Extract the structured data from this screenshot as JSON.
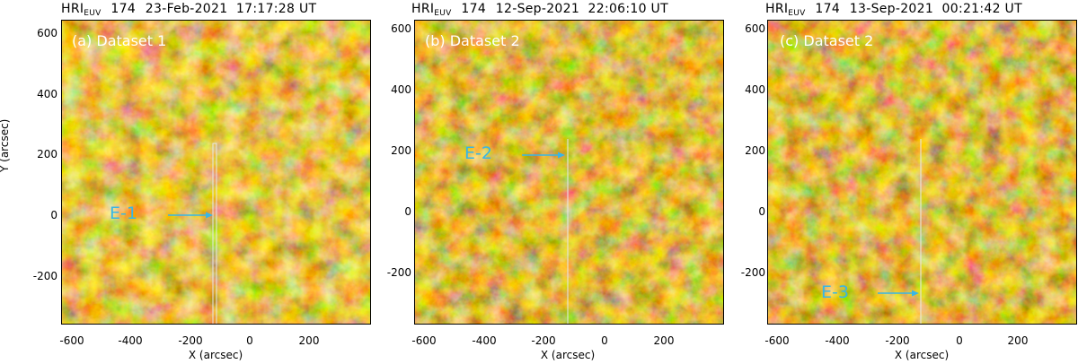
{
  "panels": [
    {
      "instrument": "HRI",
      "instrument_sub": "EUV",
      "wavelength": "174",
      "timestamp": "23-Feb-2021  17:17:28 UT",
      "panel_label": "(a) Dataset 1",
      "event_label": "E-1",
      "y_axis_title": "Y (arcsec)"
    },
    {
      "instrument": "HRI",
      "instrument_sub": "EUV",
      "wavelength": "174",
      "timestamp": "12-Sep-2021  22:06:10 UT",
      "panel_label": "(b) Dataset 2",
      "event_label": "E-2"
    },
    {
      "instrument": "HRI",
      "instrument_sub": "EUV",
      "wavelength": "174",
      "timestamp": "13-Sep-2021  00:21:42 UT",
      "panel_label": "(c) Dataset 2",
      "event_label": "E-3"
    }
  ],
  "x_axis_title": "X (arcsec)",
  "x_ticks": [
    "-600",
    "-400",
    "-200",
    "0",
    "200"
  ],
  "y_ticks": [
    "600",
    "400",
    "200",
    "0",
    "-200"
  ],
  "colors": {
    "image_base": "#6e4a00",
    "image_bright": "#ffd970",
    "annotation": "#38b6e6",
    "slit": "#e6e6e6"
  }
}
